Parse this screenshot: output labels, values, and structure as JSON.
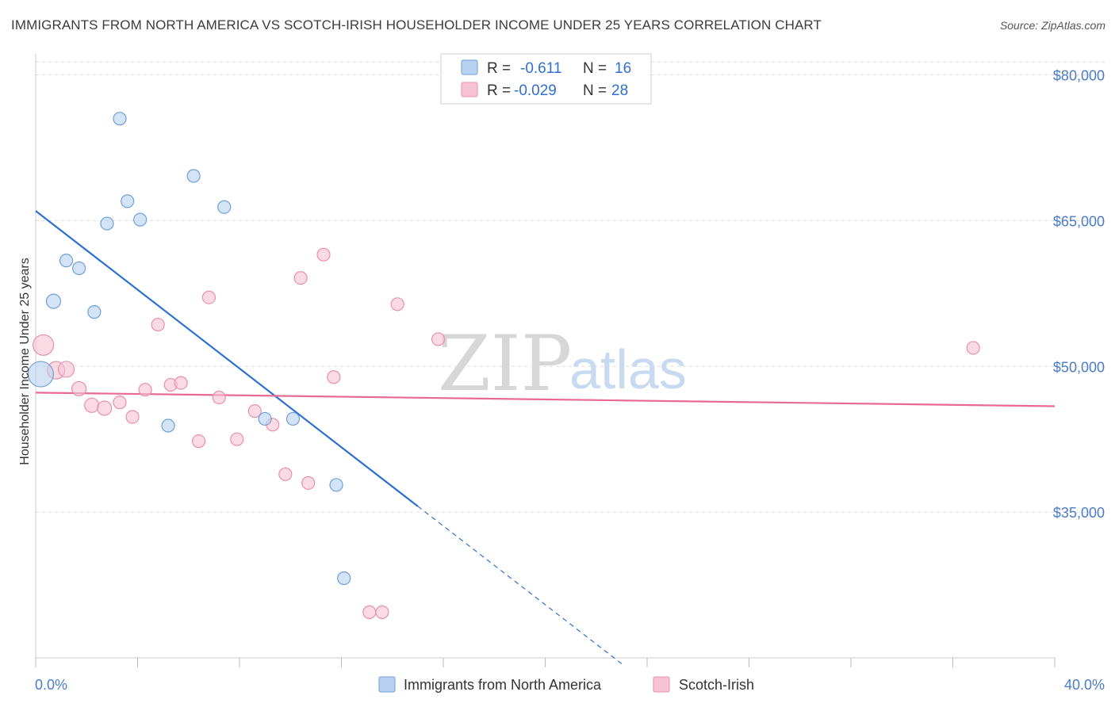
{
  "title": "IMMIGRANTS FROM NORTH AMERICA VS SCOTCH-IRISH HOUSEHOLDER INCOME UNDER 25 YEARS CORRELATION CHART",
  "source": "Source: ZipAtlas.com",
  "watermark": {
    "zip": "ZIP",
    "atlas": "atlas"
  },
  "colors": {
    "blue_fill": "#b8d1f0",
    "blue_stroke": "#6f9fd8",
    "blue_line": "#2f6fcf",
    "pink_fill": "#f7c3d2",
    "pink_stroke": "#e98fab",
    "pink_line": "#e86a93",
    "grid": "#dddddd",
    "axis_text": "#4a7cc9"
  },
  "legend": {
    "rows": [
      {
        "r_label": "R =",
        "r_value": "-0.611",
        "n_label": "N =",
        "n_value": "16",
        "series": "blue"
      },
      {
        "r_label": "R =",
        "r_value": "-0.029",
        "n_label": "N =",
        "n_value": "28",
        "series": "pink"
      }
    ]
  },
  "chart_data": {
    "type": "scatter",
    "xlabel": "",
    "ylabel": "Householder Income Under 25 years",
    "xlim": [
      0,
      40
    ],
    "ylim": [
      20000,
      82000
    ],
    "x_tick_labels": [
      {
        "value": 0,
        "label": "0.0%"
      },
      {
        "value": 40,
        "label": "40.0%"
      }
    ],
    "y_ticks": [
      {
        "value": 35000,
        "label": "$35,000"
      },
      {
        "value": 50000,
        "label": "$50,000"
      },
      {
        "value": 65000,
        "label": "$65,000"
      },
      {
        "value": 80000,
        "label": "$80,000"
      }
    ],
    "grid": true,
    "legend_position": "top-center",
    "series": [
      {
        "name": "Immigrants from North America",
        "color": "blue",
        "points": [
          {
            "x": 3.3,
            "y": 75500,
            "r": 8
          },
          {
            "x": 6.2,
            "y": 69600,
            "r": 8
          },
          {
            "x": 3.6,
            "y": 67000,
            "r": 8
          },
          {
            "x": 7.4,
            "y": 66400,
            "r": 8
          },
          {
            "x": 4.1,
            "y": 65100,
            "r": 8
          },
          {
            "x": 2.8,
            "y": 64700,
            "r": 8
          },
          {
            "x": 1.2,
            "y": 60900,
            "r": 8
          },
          {
            "x": 1.7,
            "y": 60100,
            "r": 8
          },
          {
            "x": 0.7,
            "y": 56700,
            "r": 9
          },
          {
            "x": 2.3,
            "y": 55600,
            "r": 8
          },
          {
            "x": 0.2,
            "y": 49200,
            "r": 16
          },
          {
            "x": 5.2,
            "y": 43900,
            "r": 8
          },
          {
            "x": 9.0,
            "y": 44600,
            "r": 8
          },
          {
            "x": 10.1,
            "y": 44600,
            "r": 8
          },
          {
            "x": 11.8,
            "y": 37800,
            "r": 8
          },
          {
            "x": 12.1,
            "y": 28200,
            "r": 8
          }
        ],
        "trend": {
          "x0": 0,
          "y0": 66000,
          "x1": 15.0,
          "y1": 35600,
          "dash_to_x": 23.0,
          "dash_to_y": 19400
        }
      },
      {
        "name": "Scotch-Irish",
        "color": "pink",
        "points": [
          {
            "x": 0.3,
            "y": 52200,
            "r": 13
          },
          {
            "x": 0.8,
            "y": 49600,
            "r": 11
          },
          {
            "x": 1.2,
            "y": 49700,
            "r": 10
          },
          {
            "x": 1.7,
            "y": 47700,
            "r": 9
          },
          {
            "x": 2.2,
            "y": 46000,
            "r": 9
          },
          {
            "x": 2.7,
            "y": 45700,
            "r": 9
          },
          {
            "x": 3.3,
            "y": 46300,
            "r": 8
          },
          {
            "x": 3.8,
            "y": 44800,
            "r": 8
          },
          {
            "x": 4.3,
            "y": 47600,
            "r": 8
          },
          {
            "x": 4.8,
            "y": 54300,
            "r": 8
          },
          {
            "x": 5.3,
            "y": 48100,
            "r": 8
          },
          {
            "x": 5.7,
            "y": 48300,
            "r": 8
          },
          {
            "x": 6.4,
            "y": 42300,
            "r": 8
          },
          {
            "x": 6.8,
            "y": 57100,
            "r": 8
          },
          {
            "x": 7.2,
            "y": 46800,
            "r": 8
          },
          {
            "x": 7.9,
            "y": 42500,
            "r": 8
          },
          {
            "x": 8.6,
            "y": 45400,
            "r": 8
          },
          {
            "x": 9.3,
            "y": 44000,
            "r": 8
          },
          {
            "x": 9.8,
            "y": 38900,
            "r": 8
          },
          {
            "x": 10.4,
            "y": 59100,
            "r": 8
          },
          {
            "x": 10.7,
            "y": 38000,
            "r": 8
          },
          {
            "x": 11.3,
            "y": 61500,
            "r": 8
          },
          {
            "x": 11.7,
            "y": 48900,
            "r": 8
          },
          {
            "x": 13.1,
            "y": 24700,
            "r": 8
          },
          {
            "x": 13.6,
            "y": 24700,
            "r": 8
          },
          {
            "x": 14.2,
            "y": 56400,
            "r": 8
          },
          {
            "x": 15.8,
            "y": 52800,
            "r": 8
          },
          {
            "x": 36.8,
            "y": 51900,
            "r": 8
          }
        ],
        "trend": {
          "x0": 0,
          "y0": 47300,
          "x1": 40,
          "y1": 45900
        }
      }
    ]
  }
}
